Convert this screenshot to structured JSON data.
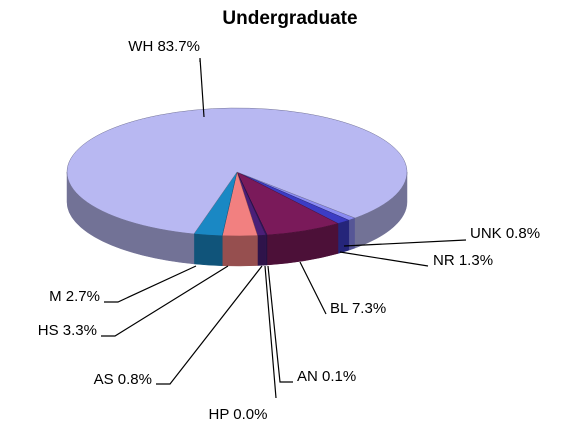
{
  "chart_data": {
    "type": "pie",
    "title": "Undergraduate",
    "categories": [
      "UNK",
      "NR",
      "BL",
      "HP",
      "AN",
      "AS",
      "HS",
      "M",
      "WH"
    ],
    "values": [
      0.8,
      1.3,
      7.3,
      0.0,
      0.1,
      0.8,
      3.3,
      2.7,
      83.7
    ],
    "value_labels": [
      "0.8%",
      "1.3%",
      "7.3%",
      "0.0%",
      "0.1%",
      "0.8%",
      "3.3%",
      "2.7%",
      "83.7%"
    ],
    "colors": [
      "#8a8af2",
      "#3c3cc4",
      "#7a1a5a",
      "#1a1a80",
      "#3a1f6a",
      "#4a1f78",
      "#f28080",
      "#1a88c4",
      "#b8b8f2"
    ]
  }
}
